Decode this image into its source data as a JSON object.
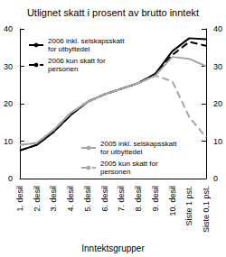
{
  "chart_data": {
    "type": "line",
    "title": "Utlignet skatt i prosent av brutto inntekt",
    "x_label": "Inntektsgrupper",
    "categories": [
      "1. desil",
      "2. desil",
      "3. desil",
      "4. desil",
      "5. desil",
      "6. desil",
      "7. desil",
      "8. desil",
      "9. desil",
      "10. desil",
      "Siste 1 pst.",
      "Siste 0,1 pst."
    ],
    "series": [
      {
        "name": "2006 inkl. selskapsskatt for utbyttedel",
        "color": "#000000",
        "line_style": "solid",
        "values": [
          7.5,
          9,
          12.5,
          17,
          20.5,
          22.5,
          24,
          25.5,
          28,
          34,
          37.5,
          37.2
        ]
      },
      {
        "name": "2006 kun skatt for personen",
        "color": "#000000",
        "line_style": "dashed",
        "values": [
          7.5,
          9,
          12.5,
          17,
          20.5,
          22.5,
          24,
          25.5,
          28,
          33,
          36.5,
          35.5
        ]
      },
      {
        "name": "2005 inkl. selskapsskatt for utbyttedel",
        "color": "#a6a6a6",
        "line_style": "solid",
        "values": [
          9,
          9.5,
          13,
          17.5,
          20.5,
          22.5,
          24,
          25.5,
          27.5,
          32.5,
          32,
          30
        ]
      },
      {
        "name": "2005 kun skatt for personen",
        "color": "#a6a6a6",
        "line_style": "dashed",
        "values": [
          9,
          9.5,
          13,
          17.5,
          20.5,
          22.5,
          24,
          25.5,
          27.5,
          26,
          16.5,
          11
        ]
      }
    ],
    "ylim": [
      0,
      40
    ],
    "yticks": [
      0,
      10,
      20,
      30,
      40
    ],
    "y2lim": [
      0,
      40
    ],
    "y2ticks": [
      0,
      10,
      20,
      30,
      40
    ],
    "grid": false
  }
}
